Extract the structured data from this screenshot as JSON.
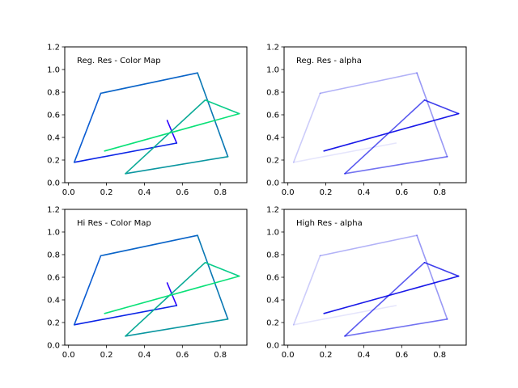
{
  "chart_data": [
    {
      "type": "line",
      "title": "Reg. Res - Color Map",
      "style": "colormap",
      "xlim": [
        -0.02,
        0.94
      ],
      "ylim": [
        0.0,
        1.2
      ],
      "xticks": [
        "0.0",
        "0.2",
        "0.4",
        "0.6",
        "0.8"
      ],
      "yticks": [
        "0.0",
        "0.2",
        "0.4",
        "0.6",
        "0.8",
        "1.0",
        "1.2"
      ],
      "x": [
        0.52,
        0.57,
        0.03,
        0.17,
        0.68,
        0.84,
        0.3,
        0.72,
        0.9,
        0.19
      ],
      "y": [
        0.55,
        0.35,
        0.18,
        0.79,
        0.97,
        0.23,
        0.08,
        0.73,
        0.61,
        0.28
      ],
      "segment_colors": [
        "#2b00ff",
        "#0a24e6",
        "#0a5cd2",
        "#0a64c8",
        "#0a78b4",
        "#0a96a0",
        "#0aaa96",
        "#0acc8a",
        "#0ae178"
      ]
    },
    {
      "type": "line",
      "title": "Reg. Res - alpha",
      "style": "alpha",
      "xlim": [
        -0.02,
        0.94
      ],
      "ylim": [
        0.0,
        1.2
      ],
      "xticks": [
        "0.0",
        "0.2",
        "0.4",
        "0.6",
        "0.8"
      ],
      "yticks": [
        "0.0",
        "0.2",
        "0.4",
        "0.6",
        "0.8",
        "1.0",
        "1.2"
      ],
      "x": [
        0.52,
        0.57,
        0.03,
        0.17,
        0.68,
        0.84,
        0.3,
        0.72,
        0.9,
        0.19
      ],
      "y": [
        0.35,
        0.35,
        0.18,
        0.79,
        0.97,
        0.23,
        0.08,
        0.73,
        0.61,
        0.28
      ],
      "line_color": "#0000e6",
      "segment_alpha": [
        0.0,
        0.1,
        0.2,
        0.3,
        0.4,
        0.55,
        0.65,
        0.75,
        0.9
      ]
    },
    {
      "type": "line",
      "title": "Hi Res - Color Map",
      "style": "colormap",
      "xlim": [
        -0.02,
        0.94
      ],
      "ylim": [
        0.0,
        1.2
      ],
      "xticks": [
        "0.0",
        "0.2",
        "0.4",
        "0.6",
        "0.8"
      ],
      "yticks": [
        "0.0",
        "0.2",
        "0.4",
        "0.6",
        "0.8",
        "1.0",
        "1.2"
      ],
      "x": [
        0.52,
        0.57,
        0.03,
        0.17,
        0.68,
        0.84,
        0.3,
        0.72,
        0.9,
        0.19
      ],
      "y": [
        0.55,
        0.35,
        0.18,
        0.79,
        0.97,
        0.23,
        0.08,
        0.73,
        0.61,
        0.28
      ],
      "segment_colors": [
        "#2b00ff",
        "#0a24e6",
        "#0a5cd2",
        "#0a64c8",
        "#0a78b4",
        "#0a96a0",
        "#0aaa96",
        "#0acc8a",
        "#0ae178"
      ]
    },
    {
      "type": "line",
      "title": "High Res - alpha",
      "style": "alpha",
      "xlim": [
        -0.02,
        0.94
      ],
      "ylim": [
        0.0,
        1.2
      ],
      "xticks": [
        "0.0",
        "0.2",
        "0.4",
        "0.6",
        "0.8"
      ],
      "yticks": [
        "0.0",
        "0.2",
        "0.4",
        "0.6",
        "0.8",
        "1.0",
        "1.2"
      ],
      "x": [
        0.52,
        0.57,
        0.03,
        0.17,
        0.68,
        0.84,
        0.3,
        0.72,
        0.9,
        0.19
      ],
      "y": [
        0.35,
        0.35,
        0.18,
        0.79,
        0.97,
        0.23,
        0.08,
        0.73,
        0.61,
        0.28
      ],
      "line_color": "#0000e6",
      "segment_alpha": [
        0.0,
        0.1,
        0.2,
        0.3,
        0.4,
        0.55,
        0.65,
        0.75,
        0.9
      ]
    }
  ]
}
